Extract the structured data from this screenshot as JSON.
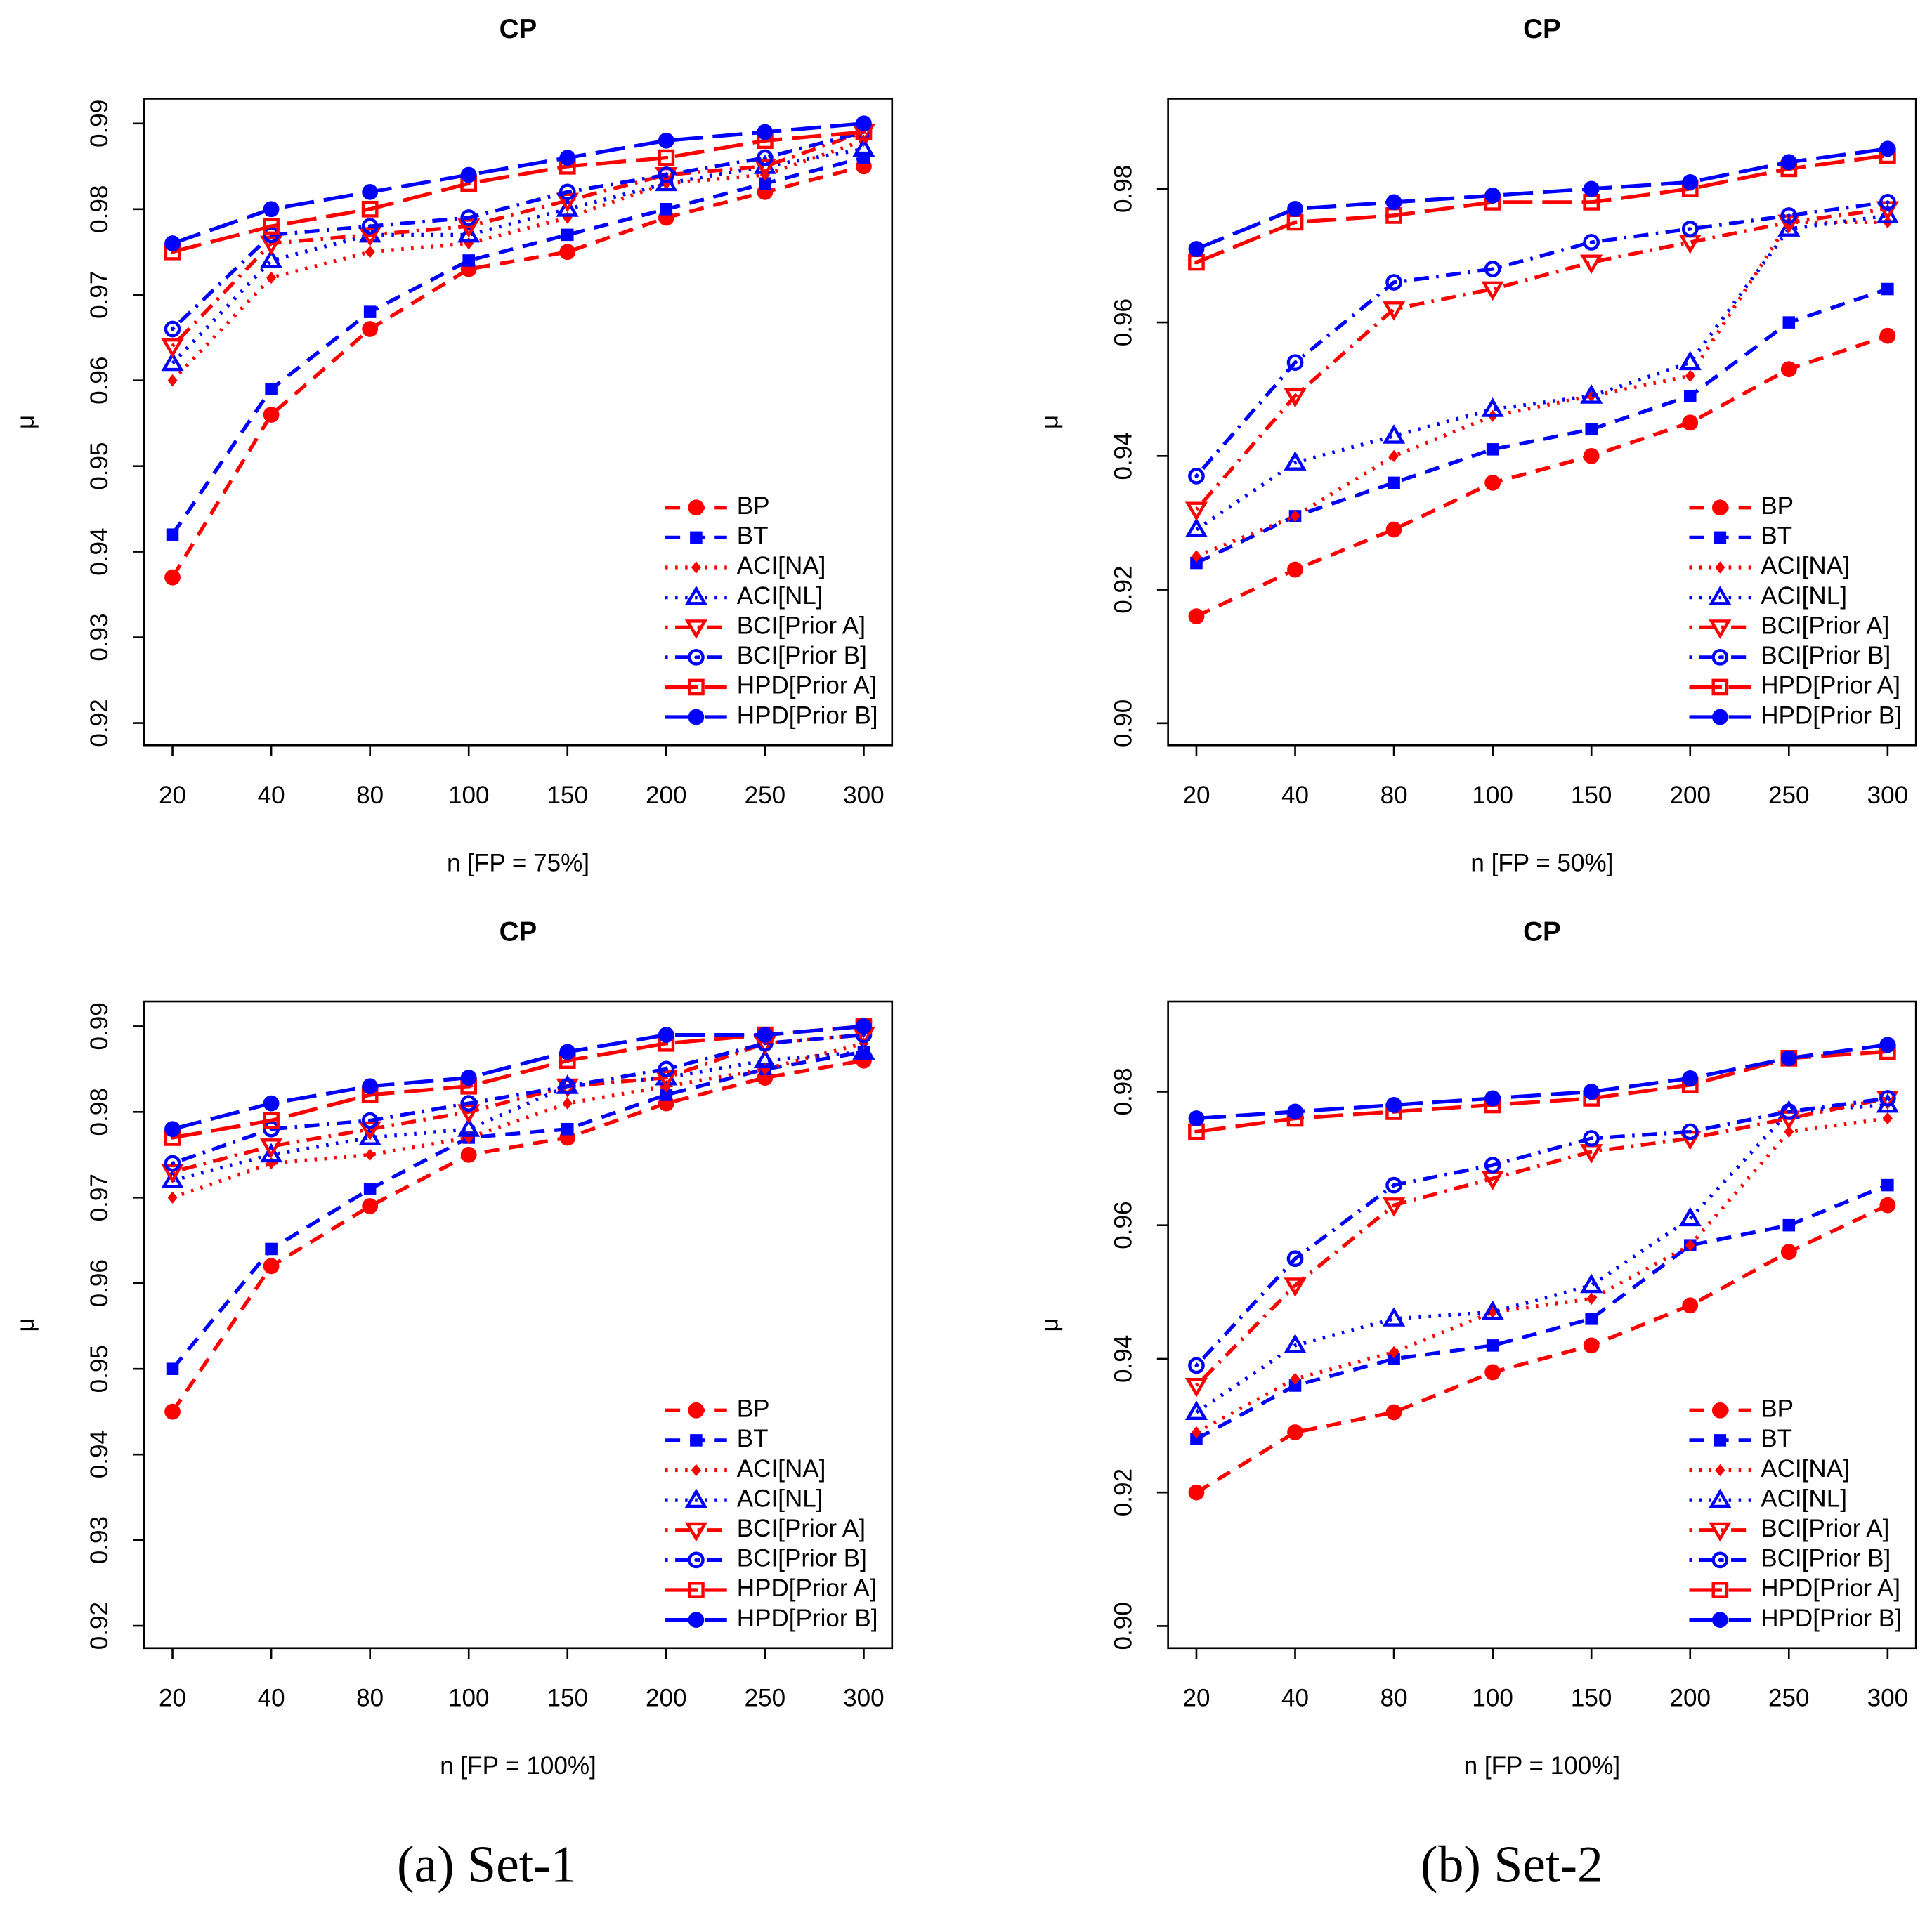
{
  "chart_data": [
    {
      "type": "line",
      "title": "CP",
      "xlabel": "n [FP = 75%]",
      "ylabel": "μ",
      "legend": "bottomright",
      "categories": [
        "20",
        "40",
        "80",
        "100",
        "150",
        "200",
        "250",
        "300"
      ],
      "ylim": [
        0.9174,
        0.9929
      ],
      "yticks": [
        0.92,
        0.93,
        0.94,
        0.95,
        0.96,
        0.97,
        0.98,
        0.99
      ],
      "series": [
        {
          "name": "BP",
          "color": "#ff0000",
          "dash": "dashed",
          "marker": "circle",
          "values": [
            0.937,
            0.956,
            0.966,
            0.973,
            0.975,
            0.979,
            0.982,
            0.985
          ]
        },
        {
          "name": "BT",
          "color": "#0000ff",
          "dash": "dashed",
          "marker": "square",
          "values": [
            0.942,
            0.959,
            0.968,
            0.974,
            0.977,
            0.98,
            0.983,
            0.986
          ]
        },
        {
          "name": "ACI[NA]",
          "color": "#ff0000",
          "dash": "dotted",
          "marker": "diamond",
          "values": [
            0.96,
            0.972,
            0.975,
            0.976,
            0.979,
            0.983,
            0.984,
            0.988
          ]
        },
        {
          "name": "ACI[NL]",
          "color": "#0000ff",
          "dash": "dotted",
          "marker": "triangle-open",
          "values": [
            0.962,
            0.974,
            0.977,
            0.977,
            0.98,
            0.983,
            0.985,
            0.987
          ]
        },
        {
          "name": "BCI[Prior A]",
          "color": "#ff0000",
          "dash": "dotdash",
          "marker": "down-triangle-open",
          "values": [
            0.964,
            0.976,
            0.977,
            0.978,
            0.981,
            0.984,
            0.985,
            0.989
          ]
        },
        {
          "name": "BCI[Prior B]",
          "color": "#0000ff",
          "dash": "dotdash",
          "marker": "circle-dot",
          "values": [
            0.966,
            0.977,
            0.978,
            0.979,
            0.982,
            0.984,
            0.986,
            0.989
          ]
        },
        {
          "name": "HPD[Prior A]",
          "color": "#ff0000",
          "dash": "longdash",
          "marker": "square-dot",
          "values": [
            0.975,
            0.978,
            0.98,
            0.983,
            0.985,
            0.986,
            0.988,
            0.989
          ]
        },
        {
          "name": "HPD[Prior B]",
          "color": "#0000ff",
          "dash": "longdash",
          "marker": "circle",
          "values": [
            0.976,
            0.98,
            0.982,
            0.984,
            0.986,
            0.988,
            0.989,
            0.99
          ]
        }
      ]
    },
    {
      "type": "line",
      "title": "CP",
      "xlabel": "n [FP = 50%]",
      "ylabel": "μ",
      "legend": "bottomright",
      "categories": [
        "20",
        "40",
        "80",
        "100",
        "150",
        "200",
        "250",
        "300"
      ],
      "ylim": [
        0.8967,
        0.9935
      ],
      "yticks": [
        {
          "value": 0.9,
          "label": "0.90"
        },
        0.92,
        0.94,
        0.96,
        0.98
      ],
      "series": [
        {
          "name": "BP",
          "color": "#ff0000",
          "dash": "dashed",
          "marker": "circle",
          "values": [
            0.916,
            0.923,
            0.929,
            0.936,
            0.94,
            0.945,
            0.953,
            0.958
          ]
        },
        {
          "name": "BT",
          "color": "#0000ff",
          "dash": "dashed",
          "marker": "square",
          "values": [
            0.924,
            0.931,
            0.936,
            0.941,
            0.944,
            0.949,
            0.96,
            0.965
          ]
        },
        {
          "name": "ACI[NA]",
          "color": "#ff0000",
          "dash": "dotted",
          "marker": "diamond",
          "values": [
            0.925,
            0.931,
            0.94,
            0.946,
            0.949,
            0.952,
            0.975,
            0.975
          ]
        },
        {
          "name": "ACI[NL]",
          "color": "#0000ff",
          "dash": "dotted",
          "marker": "triangle-open",
          "values": [
            0.929,
            0.939,
            0.943,
            0.947,
            0.949,
            0.954,
            0.974,
            0.976
          ]
        },
        {
          "name": "BCI[Prior A]",
          "color": "#ff0000",
          "dash": "dotdash",
          "marker": "down-triangle-open",
          "values": [
            0.932,
            0.949,
            0.962,
            0.965,
            0.969,
            0.972,
            0.975,
            0.977
          ]
        },
        {
          "name": "BCI[Prior B]",
          "color": "#0000ff",
          "dash": "dotdash",
          "marker": "circle-dot",
          "values": [
            0.937,
            0.954,
            0.966,
            0.968,
            0.972,
            0.974,
            0.976,
            0.978
          ]
        },
        {
          "name": "HPD[Prior A]",
          "color": "#ff0000",
          "dash": "longdash",
          "marker": "square-dot",
          "values": [
            0.969,
            0.975,
            0.976,
            0.978,
            0.978,
            0.98,
            0.983,
            0.985
          ]
        },
        {
          "name": "HPD[Prior B]",
          "color": "#0000ff",
          "dash": "longdash",
          "marker": "circle",
          "values": [
            0.971,
            0.977,
            0.978,
            0.979,
            0.98,
            0.981,
            0.984,
            0.986
          ]
        }
      ]
    },
    {
      "type": "line",
      "title": "CP",
      "xlabel": "n [FP = 100%]",
      "ylabel": "μ",
      "legend": "bottomright",
      "categories": [
        "20",
        "40",
        "80",
        "100",
        "150",
        "200",
        "250",
        "300"
      ],
      "ylim": [
        0.9174,
        0.9929
      ],
      "yticks": [
        0.92,
        0.93,
        0.94,
        0.95,
        0.96,
        0.97,
        0.98,
        0.99
      ],
      "series": [
        {
          "name": "BP",
          "color": "#ff0000",
          "dash": "dashed",
          "marker": "circle",
          "values": [
            0.945,
            0.962,
            0.969,
            0.975,
            0.977,
            0.981,
            0.984,
            0.986
          ]
        },
        {
          "name": "BT",
          "color": "#0000ff",
          "dash": "dashed",
          "marker": "square",
          "values": [
            0.95,
            0.964,
            0.971,
            0.977,
            0.978,
            0.982,
            0.985,
            0.987
          ]
        },
        {
          "name": "ACI[NA]",
          "color": "#ff0000",
          "dash": "dotted",
          "marker": "diamond",
          "values": [
            0.97,
            0.974,
            0.975,
            0.977,
            0.981,
            0.983,
            0.985,
            0.988
          ]
        },
        {
          "name": "ACI[NL]",
          "color": "#0000ff",
          "dash": "dotted",
          "marker": "triangle-open",
          "values": [
            0.972,
            0.975,
            0.977,
            0.978,
            0.983,
            0.984,
            0.986,
            0.987
          ]
        },
        {
          "name": "BCI[Prior A]",
          "color": "#ff0000",
          "dash": "dotdash",
          "marker": "down-triangle-open",
          "values": [
            0.973,
            0.976,
            0.978,
            0.98,
            0.983,
            0.984,
            0.988,
            0.989
          ]
        },
        {
          "name": "BCI[Prior B]",
          "color": "#0000ff",
          "dash": "dotdash",
          "marker": "circle-dot",
          "values": [
            0.974,
            0.978,
            0.979,
            0.981,
            0.983,
            0.985,
            0.988,
            0.989
          ]
        },
        {
          "name": "HPD[Prior A]",
          "color": "#ff0000",
          "dash": "longdash",
          "marker": "square-dot",
          "values": [
            0.977,
            0.979,
            0.982,
            0.983,
            0.986,
            0.988,
            0.989,
            0.99
          ]
        },
        {
          "name": "HPD[Prior B]",
          "color": "#0000ff",
          "dash": "longdash",
          "marker": "circle",
          "values": [
            0.978,
            0.981,
            0.983,
            0.984,
            0.987,
            0.989,
            0.989,
            0.99
          ]
        }
      ]
    },
    {
      "type": "line",
      "title": "CP",
      "xlabel": "n [FP = 100%]",
      "ylabel": "μ",
      "legend": "bottomright",
      "categories": [
        "20",
        "40",
        "80",
        "100",
        "150",
        "200",
        "250",
        "300"
      ],
      "ylim": [
        0.8967,
        0.9935
      ],
      "yticks": [
        {
          "value": 0.9,
          "label": "0.90"
        },
        0.92,
        0.94,
        0.96,
        0.98
      ],
      "series": [
        {
          "name": "BP",
          "color": "#ff0000",
          "dash": "dashed",
          "marker": "circle",
          "values": [
            0.92,
            0.929,
            0.932,
            0.938,
            0.942,
            0.948,
            0.956,
            0.963
          ]
        },
        {
          "name": "BT",
          "color": "#0000ff",
          "dash": "dashed",
          "marker": "square",
          "values": [
            0.928,
            0.936,
            0.94,
            0.942,
            0.946,
            0.957,
            0.96,
            0.966
          ]
        },
        {
          "name": "ACI[NA]",
          "color": "#ff0000",
          "dash": "dotted",
          "marker": "diamond",
          "values": [
            0.929,
            0.937,
            0.941,
            0.947,
            0.949,
            0.957,
            0.974,
            0.976
          ]
        },
        {
          "name": "ACI[NL]",
          "color": "#0000ff",
          "dash": "dotted",
          "marker": "triangle-open",
          "values": [
            0.932,
            0.942,
            0.946,
            0.947,
            0.951,
            0.961,
            0.977,
            0.978
          ]
        },
        {
          "name": "BCI[Prior A]",
          "color": "#ff0000",
          "dash": "dotdash",
          "marker": "down-triangle-open",
          "values": [
            0.936,
            0.951,
            0.963,
            0.967,
            0.971,
            0.973,
            0.976,
            0.979
          ]
        },
        {
          "name": "BCI[Prior B]",
          "color": "#0000ff",
          "dash": "dotdash",
          "marker": "circle-dot",
          "values": [
            0.939,
            0.955,
            0.966,
            0.969,
            0.973,
            0.974,
            0.977,
            0.979
          ]
        },
        {
          "name": "HPD[Prior A]",
          "color": "#ff0000",
          "dash": "longdash",
          "marker": "square-dot",
          "values": [
            0.974,
            0.976,
            0.977,
            0.978,
            0.979,
            0.981,
            0.985,
            0.986
          ]
        },
        {
          "name": "HPD[Prior B]",
          "color": "#0000ff",
          "dash": "longdash",
          "marker": "circle",
          "values": [
            0.976,
            0.977,
            0.978,
            0.979,
            0.98,
            0.982,
            0.985,
            0.987
          ]
        }
      ]
    }
  ],
  "captions": [
    "(a) Set-1",
    "(b) Set-2"
  ]
}
